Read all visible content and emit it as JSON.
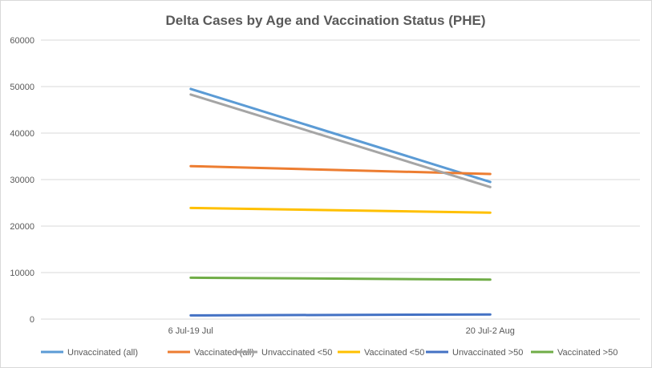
{
  "chart_data": {
    "type": "line",
    "title": "Delta Cases by Age and Vaccination Status (PHE)",
    "categories": [
      "6 Jul-19 Jul",
      "20 Jul-2 Aug"
    ],
    "ylim": [
      0,
      60000
    ],
    "yticks": [
      0,
      10000,
      20000,
      30000,
      40000,
      50000,
      60000
    ],
    "grid": true,
    "legend_position": "bottom",
    "series": [
      {
        "name": "Unvaccinated (all)",
        "color": "#5b9bd5",
        "values": [
          49500,
          29500
        ]
      },
      {
        "name": "Vaccinated (all)",
        "color": "#ed7d31",
        "values": [
          32900,
          31200
        ]
      },
      {
        "name": "Unvaccinated <50",
        "color": "#a5a5a5",
        "values": [
          48300,
          28400
        ]
      },
      {
        "name": "Vaccinated <50",
        "color": "#ffc000",
        "values": [
          23900,
          22900
        ]
      },
      {
        "name": "Unvaccinated >50",
        "color": "#4472c4",
        "values": [
          800,
          1000
        ]
      },
      {
        "name": "Vaccinated >50",
        "color": "#70ad47",
        "values": [
          8900,
          8500
        ]
      }
    ]
  }
}
